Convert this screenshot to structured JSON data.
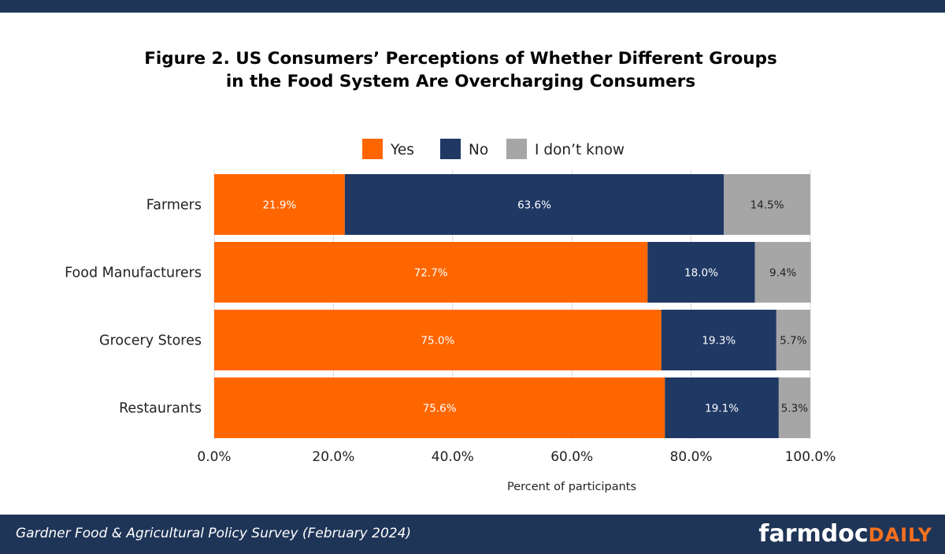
{
  "chart_data": {
    "type": "bar",
    "orientation": "horizontal",
    "stacked": true,
    "title_lines": [
      "Figure 2. US Consumers’ Perceptions of Whether Different Groups",
      "in the Food System Are Overcharging Consumers"
    ],
    "categories": [
      "Farmers",
      "Food Manufacturers",
      "Grocery Stores",
      "Restaurants"
    ],
    "series": [
      {
        "name": "Yes",
        "color": "#ff6600",
        "values": [
          21.9,
          72.7,
          75.0,
          75.6
        ],
        "labels": [
          "21.9%",
          "72.7%",
          "75.0%",
          "75.6%"
        ]
      },
      {
        "name": "No",
        "color": "#1f3864",
        "values": [
          63.6,
          18.0,
          19.3,
          19.1
        ],
        "labels": [
          "63.6%",
          "18.0%",
          "19.3%",
          "19.1%"
        ]
      },
      {
        "name": "I don’t know",
        "color": "#a6a6a6",
        "values": [
          14.5,
          9.4,
          5.7,
          5.3
        ],
        "labels": [
          "14.5%",
          "9.4%",
          "5.7%",
          "5.3%"
        ]
      }
    ],
    "xlabel": "Percent of participants",
    "ylabel": "",
    "xlim": [
      0,
      100
    ],
    "xticks": [
      "0.0%",
      "20.0%",
      "40.0%",
      "60.0%",
      "80.0%",
      "100.0%"
    ],
    "grid": "vertical",
    "legend_position": "top"
  },
  "footer": {
    "note": "Gardner Food & Agricultural Policy Survey (February 2024)",
    "logo_main": "farmdoc",
    "logo_accent": "DAILY"
  }
}
